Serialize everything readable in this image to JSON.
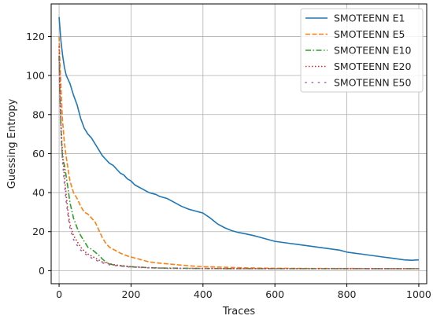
{
  "chart_data": {
    "type": "line",
    "title": "",
    "xlabel": "Traces",
    "ylabel": "Guessing Entropy",
    "xlim": [
      -22,
      1022
    ],
    "ylim": [
      -6.7,
      136.7
    ],
    "xticks": [
      0,
      200,
      400,
      600,
      800,
      1000
    ],
    "yticks": [
      0,
      20,
      40,
      60,
      80,
      100,
      120
    ],
    "grid": true,
    "legend_position": "top-right",
    "series": [
      {
        "name": "SMOTEENN E1",
        "color": "#1f77b4",
        "style": "solid",
        "x": [
          0,
          5,
          10,
          15,
          20,
          25,
          30,
          40,
          50,
          60,
          70,
          80,
          90,
          100,
          110,
          120,
          130,
          140,
          150,
          160,
          170,
          180,
          190,
          200,
          210,
          220,
          230,
          240,
          250,
          260,
          270,
          280,
          290,
          300,
          320,
          340,
          360,
          380,
          400,
          420,
          440,
          460,
          480,
          500,
          520,
          540,
          560,
          580,
          600,
          620,
          640,
          660,
          680,
          700,
          720,
          740,
          760,
          780,
          800,
          820,
          840,
          860,
          880,
          900,
          920,
          940,
          960,
          980,
          1000
        ],
        "y": [
          130,
          118,
          110,
          104,
          100,
          98,
          96,
          90,
          85,
          78,
          73,
          70,
          68,
          65,
          62,
          59,
          57,
          55,
          54,
          52,
          50,
          49,
          47,
          46,
          44,
          43,
          42,
          41,
          40,
          39.5,
          39,
          38,
          37.5,
          37,
          35,
          33,
          31.5,
          30.5,
          29.5,
          27,
          24,
          22,
          20.5,
          19.5,
          18.8,
          18,
          17,
          16,
          15,
          14.5,
          14,
          13.5,
          13,
          12.5,
          12,
          11.5,
          11,
          10.5,
          9.5,
          9,
          8.5,
          8,
          7.5,
          7,
          6.5,
          6,
          5.5,
          5.3,
          5.5
        ]
      },
      {
        "name": "SMOTEENN E5",
        "color": "#ff7f0e",
        "style": "dashed",
        "x": [
          0,
          2,
          5,
          8,
          10,
          15,
          20,
          25,
          30,
          40,
          50,
          60,
          70,
          80,
          90,
          100,
          110,
          120,
          130,
          140,
          150,
          170,
          190,
          210,
          230,
          250,
          270,
          300,
          330,
          360,
          400,
          450,
          500,
          550,
          600,
          700,
          800,
          900,
          1000
        ],
        "y": [
          120,
          108,
          95,
          82,
          76,
          65,
          58,
          52,
          46,
          40,
          37,
          33,
          30,
          29,
          27,
          25,
          21,
          17,
          14,
          12,
          11,
          9,
          7.5,
          6.5,
          5.5,
          4.5,
          4,
          3.5,
          3,
          2.5,
          2,
          1.8,
          1.5,
          1.3,
          1.2,
          1.1,
          1.1,
          1,
          1
        ]
      },
      {
        "name": "SMOTEENN E10",
        "color": "#2ca02c",
        "style": "dashdot",
        "x": [
          0,
          2,
          4,
          6,
          8,
          10,
          15,
          20,
          25,
          30,
          40,
          50,
          60,
          70,
          80,
          90,
          100,
          110,
          120,
          130,
          140,
          150,
          170,
          200,
          250,
          300,
          400,
          500,
          600,
          800,
          1000
        ],
        "y": [
          110,
          92,
          80,
          70,
          62,
          57,
          54,
          48,
          42,
          35,
          27,
          22,
          18,
          15,
          12,
          11,
          9.5,
          8,
          6,
          4.5,
          3.5,
          3,
          2.5,
          2,
          1.5,
          1.3,
          1.1,
          1,
          1,
          1,
          1
        ]
      },
      {
        "name": "SMOTEENN E20",
        "color": "#d62728",
        "style": "dotted",
        "x": [
          0,
          2,
          4,
          6,
          8,
          10,
          15,
          20,
          25,
          30,
          40,
          50,
          60,
          70,
          80,
          90,
          100,
          120,
          140,
          160,
          200,
          250,
          300,
          400,
          500,
          600,
          800,
          1000
        ],
        "y": [
          115,
          95,
          82,
          72,
          65,
          60,
          48,
          38,
          30,
          24,
          18,
          15,
          12,
          10,
          8.5,
          7.5,
          6.5,
          4.5,
          3.5,
          2.8,
          2,
          1.5,
          1.2,
          1.1,
          1,
          1,
          1,
          1
        ]
      },
      {
        "name": "SMOTEENN E50",
        "color": "#9467bd",
        "style": "sparse-dotted",
        "x": [
          0,
          2,
          4,
          6,
          8,
          10,
          15,
          20,
          25,
          30,
          40,
          50,
          60,
          70,
          80,
          90,
          100,
          120,
          140,
          160,
          200,
          250,
          300,
          400,
          500,
          600,
          800,
          1000
        ],
        "y": [
          108,
          90,
          78,
          68,
          60,
          55,
          44,
          35,
          28,
          22,
          16,
          13,
          10.5,
          9,
          7.5,
          6.5,
          5.5,
          4,
          3,
          2.5,
          1.8,
          1.4,
          1.2,
          1.1,
          1,
          1,
          1,
          1
        ]
      }
    ]
  }
}
